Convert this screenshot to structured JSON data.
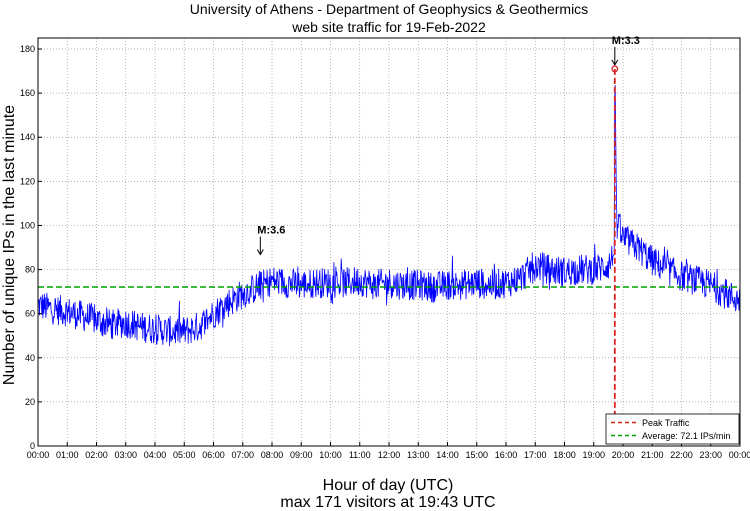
{
  "chart_data": {
    "type": "line",
    "title": "University of Athens - Department of Geophysics & Geothermics",
    "subtitle": "web site traffic for 19-Feb-2022",
    "xlabel": "Hour of day (UTC)",
    "xlabel2": "max 171 visitors at 19:43 UTC",
    "ylabel": "Number of unique IPs in the last minute",
    "xlim": [
      0,
      24
    ],
    "ylim": [
      0,
      185
    ],
    "xticks": [
      "00:00",
      "01:00",
      "02:00",
      "03:00",
      "04:00",
      "05:00",
      "06:00",
      "07:00",
      "08:00",
      "09:00",
      "10:00",
      "11:00",
      "12:00",
      "13:00",
      "14:00",
      "15:00",
      "16:00",
      "17:00",
      "18:00",
      "19:00",
      "20:00",
      "21:00",
      "22:00",
      "23:00",
      "00:00"
    ],
    "yticks": [
      0,
      20,
      40,
      60,
      80,
      100,
      120,
      140,
      160,
      180
    ],
    "grid": true,
    "series": [
      {
        "name": "Traffic",
        "color": "#0000ff",
        "x": [
          0,
          0.5,
          1,
          1.5,
          2,
          2.5,
          3,
          3.5,
          4,
          4.5,
          5,
          5.5,
          6,
          6.5,
          7,
          7.5,
          8,
          8.5,
          9,
          9.5,
          10,
          10.5,
          11,
          11.5,
          12,
          12.5,
          13,
          13.5,
          14,
          14.5,
          15,
          15.5,
          16,
          16.5,
          17,
          17.5,
          18,
          18.5,
          19,
          19.5,
          19.7,
          19.72,
          19.74,
          19.76,
          19.8,
          20,
          20.5,
          21,
          21.5,
          22,
          22.5,
          23,
          23.5,
          24
        ],
        "values": [
          64,
          62,
          61,
          59,
          57,
          55,
          56,
          54,
          53,
          52,
          52,
          54,
          60,
          65,
          69,
          72,
          75,
          74,
          73,
          74,
          74,
          74,
          75,
          73,
          74,
          73,
          73,
          72,
          73,
          73,
          74,
          73,
          74,
          76,
          82,
          80,
          79,
          80,
          80,
          82,
          87,
          171,
          160,
          125,
          100,
          94,
          90,
          84,
          80,
          77,
          75,
          73,
          69,
          66
        ]
      }
    ],
    "average": {
      "value": 72.1,
      "color": "#00a000"
    },
    "peak": {
      "x": 19.72,
      "value": 171,
      "color": "#dd2222"
    },
    "annotations": [
      {
        "label": "M:3.6",
        "x": 7.6,
        "value": 85
      },
      {
        "label": "M:3.3",
        "x": 19.72,
        "value": 171
      }
    ],
    "legend": {
      "position": "bottom-right",
      "items": [
        {
          "label": "Peak Traffic",
          "color": "#dd2222",
          "style": "dashed"
        },
        {
          "label": "Average: 72.1 IPs/min",
          "color": "#00a000",
          "style": "dashed"
        }
      ]
    }
  }
}
